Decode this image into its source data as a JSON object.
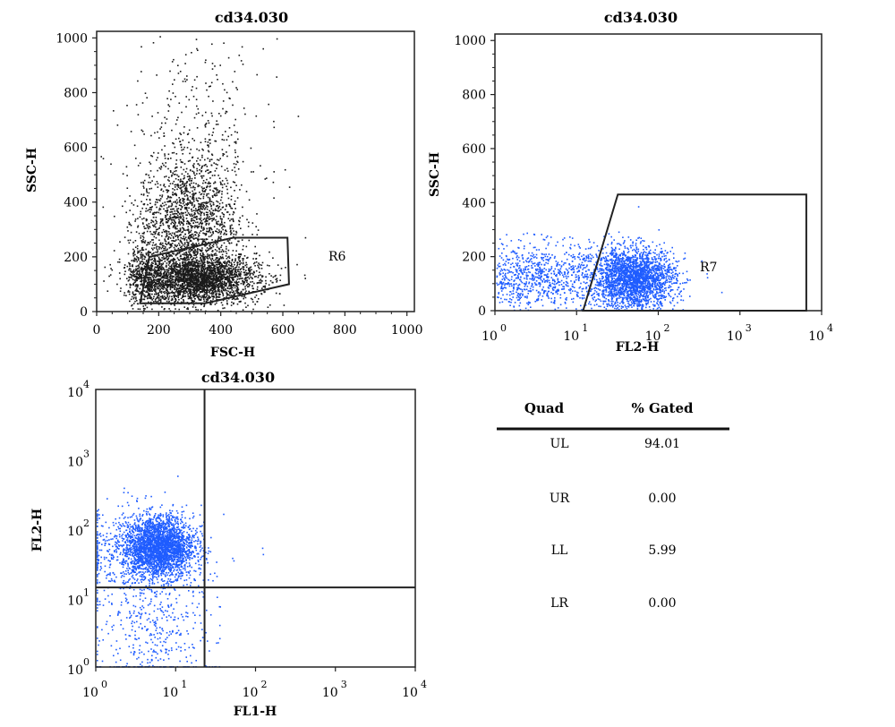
{
  "chart_data": [
    {
      "type": "scatter",
      "title": "cd34.030",
      "xlabel": "FSC-H",
      "ylabel": "SSC-H",
      "xscale": "linear",
      "yscale": "linear",
      "xlim": [
        0,
        1024
      ],
      "ylim": [
        0,
        1024
      ],
      "xticks": [
        "0",
        "200",
        "400",
        "600",
        "800",
        "1000"
      ],
      "yticks": [
        "0",
        "200",
        "400",
        "600",
        "800",
        "1000"
      ],
      "point_color": "#1a1a1a",
      "clusters": [
        {
          "center": [
            330,
            120
          ],
          "spread": [
            95,
            45
          ],
          "count": 2600
        },
        {
          "center": [
            290,
            330
          ],
          "spread": [
            80,
            110
          ],
          "count": 1500
        },
        {
          "center": [
            160,
            130
          ],
          "spread": [
            30,
            60
          ],
          "count": 500
        },
        {
          "center": [
            320,
            600
          ],
          "spread": [
            110,
            190
          ],
          "count": 400
        }
      ],
      "gate": {
        "name": "R6",
        "polygon": [
          [
            140,
            30
          ],
          [
            350,
            30
          ],
          [
            620,
            100
          ],
          [
            615,
            270
          ],
          [
            440,
            270
          ],
          [
            170,
            200
          ]
        ]
      }
    },
    {
      "type": "scatter",
      "title": "cd34.030",
      "xlabel": "FL2-H",
      "ylabel": "SSC-H",
      "xscale": "log",
      "yscale": "linear",
      "xlim": [
        1,
        10000
      ],
      "ylim": [
        0,
        1024
      ],
      "xticks": [
        {
          "base": "10",
          "exp": "0"
        },
        {
          "base": "10",
          "exp": "1"
        },
        {
          "base": "10",
          "exp": "2"
        },
        {
          "base": "10",
          "exp": "3"
        },
        {
          "base": "10",
          "exp": "4"
        }
      ],
      "yticks": [
        "0",
        "200",
        "400",
        "600",
        "800",
        "1000"
      ],
      "point_color": "#1f5cff",
      "clusters": [
        {
          "center": [
            50,
            120
          ],
          "spread": [
            0.25,
            55
          ],
          "count": 2300
        },
        {
          "center": [
            5,
            130
          ],
          "spread": [
            0.55,
            60
          ],
          "count": 900
        },
        {
          "center": [
            1.5,
            120
          ],
          "spread": [
            0.35,
            70
          ],
          "count": 250
        }
      ],
      "gate": {
        "name": "R7",
        "polygon": [
          [
            12,
            0
          ],
          [
            32,
            430
          ],
          [
            6500,
            430
          ],
          [
            6500,
            0
          ]
        ]
      }
    },
    {
      "type": "scatter",
      "title": "cd34.030",
      "xlabel": "FL1-H",
      "ylabel": "FL2-H",
      "xscale": "log",
      "yscale": "log",
      "xlim": [
        1,
        10000
      ],
      "ylim": [
        1,
        10000
      ],
      "xticks": [
        {
          "base": "10",
          "exp": "0"
        },
        {
          "base": "10",
          "exp": "1"
        },
        {
          "base": "10",
          "exp": "2"
        },
        {
          "base": "10",
          "exp": "3"
        },
        {
          "base": "10",
          "exp": "4"
        }
      ],
      "yticks": [
        {
          "base": "10",
          "exp": "0"
        },
        {
          "base": "10",
          "exp": "1"
        },
        {
          "base": "10",
          "exp": "2"
        },
        {
          "base": "10",
          "exp": "3"
        },
        {
          "base": "10",
          "exp": "4"
        }
      ],
      "point_color": "#1f5cff",
      "clusters": [
        {
          "center": [
            6,
            55
          ],
          "spread": [
            0.22,
            0.22
          ],
          "count": 2600
        },
        {
          "center": [
            5,
            3
          ],
          "spread": [
            0.4,
            0.45
          ],
          "count": 400
        },
        {
          "center": [
            3,
            40
          ],
          "spread": [
            0.45,
            0.35
          ],
          "count": 500
        }
      ],
      "quadrant_lines": {
        "x": 23,
        "y": 14
      }
    }
  ],
  "quad_table": {
    "headers": [
      "Quad",
      "% Gated"
    ],
    "rows": [
      {
        "quad": "UL",
        "gated": "94.01"
      },
      {
        "quad": "UR",
        "gated": "0.00"
      },
      {
        "quad": "LL",
        "gated": "5.99"
      },
      {
        "quad": "LR",
        "gated": "0.00"
      }
    ]
  }
}
